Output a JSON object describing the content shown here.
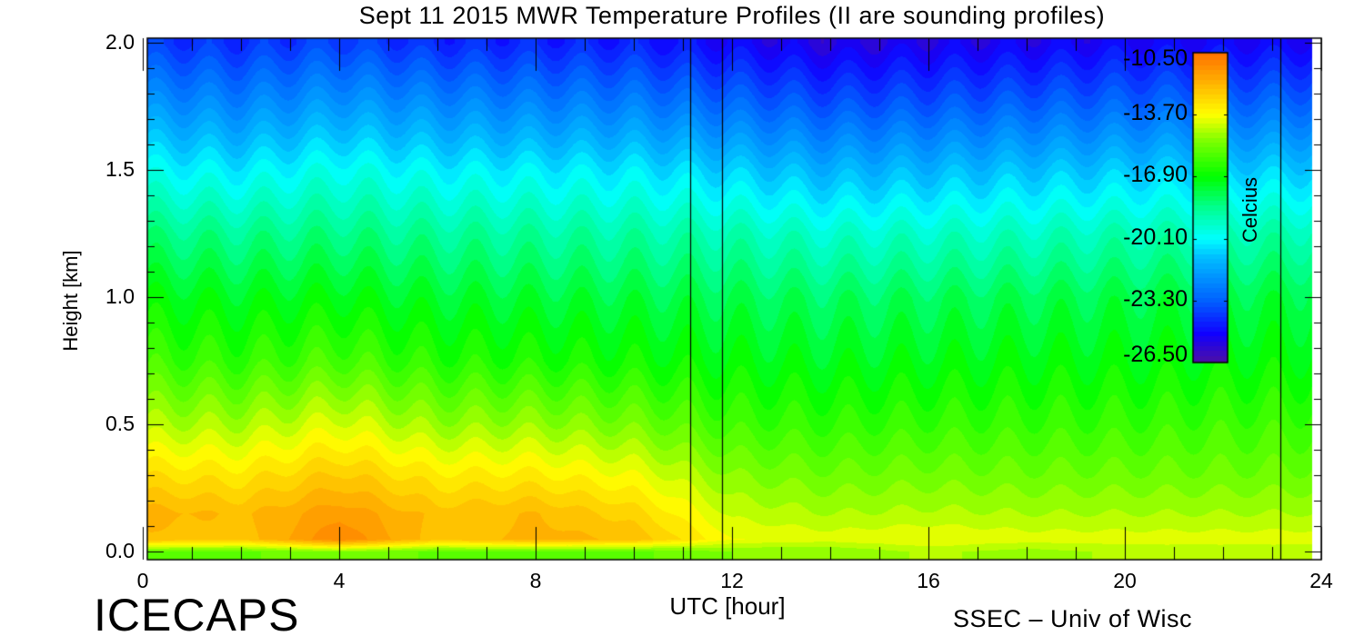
{
  "chart_data": {
    "type": "heatmap",
    "title": "Sept 11 2015 MWR Temperature Profiles (II are sounding profiles)",
    "xlabel": "UTC [hour]",
    "ylabel": "Height [km]",
    "xlim": [
      0,
      24
    ],
    "ylim": [
      0,
      2.0
    ],
    "x_ticks": [
      "0",
      "4",
      "8",
      "12",
      "16",
      "20",
      "24"
    ],
    "y_ticks": [
      "0.0",
      "0.5",
      "1.0",
      "1.5",
      "2.0"
    ],
    "colorbar": {
      "label": "Celcius",
      "range": [
        -26.5,
        -10.5
      ],
      "ticks": [
        "-10.50",
        "-13.70",
        "-16.90",
        "-20.10",
        "-23.30",
        "-26.50"
      ]
    },
    "sounding_lines": [
      11.15,
      11.8,
      23.17
    ],
    "times": [
      0,
      2,
      4,
      6,
      8,
      10,
      12,
      14,
      16,
      18,
      20,
      22,
      24
    ],
    "heights": [
      0,
      0.05,
      0.15,
      0.3,
      0.5,
      0.75,
      1.0,
      1.25,
      1.5,
      1.75,
      2.0
    ],
    "temperature": [
      [
        -15.5,
        -12.3,
        -12.0,
        -13.0,
        -14.5,
        -16.0,
        -17.0,
        -18.3,
        -20.0,
        -22.0,
        -24.0
      ],
      [
        -15.5,
        -12.5,
        -12.3,
        -13.2,
        -14.6,
        -16.2,
        -17.2,
        -18.5,
        -20.3,
        -22.3,
        -24.2
      ],
      [
        -15.0,
        -11.0,
        -11.5,
        -12.5,
        -14.0,
        -15.8,
        -17.0,
        -18.3,
        -19.8,
        -21.8,
        -23.8
      ],
      [
        -15.5,
        -12.5,
        -12.4,
        -13.3,
        -14.8,
        -16.4,
        -17.4,
        -18.6,
        -20.2,
        -22.2,
        -24.3
      ],
      [
        -15.5,
        -12.0,
        -12.2,
        -13.3,
        -14.8,
        -16.5,
        -17.5,
        -18.7,
        -20.3,
        -22.4,
        -24.4
      ],
      [
        -15.5,
        -12.3,
        -12.8,
        -13.8,
        -15.2,
        -16.7,
        -17.6,
        -18.8,
        -20.4,
        -22.5,
        -24.5
      ],
      [
        -15.0,
        -13.8,
        -14.3,
        -15.0,
        -16.0,
        -17.0,
        -17.8,
        -19.0,
        -20.8,
        -23.0,
        -25.0
      ],
      [
        -15.0,
        -14.0,
        -14.6,
        -15.3,
        -16.2,
        -17.2,
        -18.0,
        -19.4,
        -21.3,
        -23.5,
        -25.5
      ],
      [
        -14.5,
        -13.8,
        -14.5,
        -15.2,
        -16.1,
        -17.1,
        -17.9,
        -19.3,
        -21.2,
        -23.4,
        -25.3
      ],
      [
        -14.8,
        -14.0,
        -14.6,
        -15.3,
        -16.1,
        -17.0,
        -17.8,
        -19.2,
        -21.0,
        -23.2,
        -25.2
      ],
      [
        -14.5,
        -14.0,
        -14.6,
        -15.3,
        -16.1,
        -17.0,
        -17.7,
        -19.0,
        -20.9,
        -23.1,
        -25.0
      ],
      [
        -14.5,
        -14.0,
        -14.6,
        -15.3,
        -16.0,
        -16.9,
        -17.6,
        -18.9,
        -20.8,
        -23.0,
        -25.0
      ],
      [
        -14.5,
        -14.0,
        -14.6,
        -15.3,
        -16.0,
        -16.9,
        -17.6,
        -18.9,
        -20.8,
        -23.0,
        -25.0
      ]
    ]
  },
  "footer": {
    "brand": "ICECAPS",
    "credit": "SSEC – Univ of Wisc"
  }
}
